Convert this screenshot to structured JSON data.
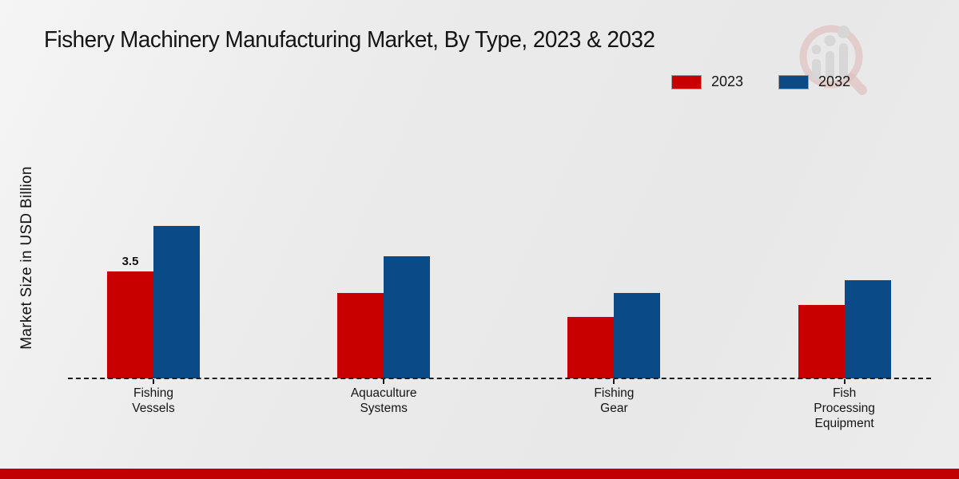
{
  "title": "Fishery Machinery Manufacturing Market, By Type, 2023 & 2032",
  "legend": {
    "items": [
      {
        "label": "2023",
        "color": "#c80000"
      },
      {
        "label": "2032",
        "color": "#0a4b87"
      }
    ]
  },
  "footer": {
    "accent_color": "#c00000"
  },
  "watermark": {
    "icon": "magnifier-bar-chart-logo",
    "ring_color": "#d9a3a3",
    "bar_color": "#c7c7c7"
  },
  "chart_data": {
    "type": "bar",
    "title": "Fishery Machinery Manufacturing Market, By Type, 2023 & 2032",
    "categories": [
      "Fishing Vessels",
      "Aquaculture Systems",
      "Fishing Gear",
      "Fish Processing Equipment"
    ],
    "series": [
      {
        "name": "2023",
        "color": "#c80000",
        "values": [
          3.5,
          2.8,
          2.0,
          2.4
        ]
      },
      {
        "name": "2032",
        "color": "#0a4b87",
        "values": [
          5.0,
          4.0,
          2.8,
          3.2
        ]
      }
    ],
    "xlabel": "",
    "ylabel": "Market Size in USD Billion",
    "ylim": [
      0,
      5.5
    ],
    "grid": false,
    "legend_position": "top-right",
    "axis_style": "dashed-baseline-only",
    "data_labels": [
      {
        "series_index": 0,
        "category_index": 0,
        "text": "3.5"
      }
    ]
  }
}
